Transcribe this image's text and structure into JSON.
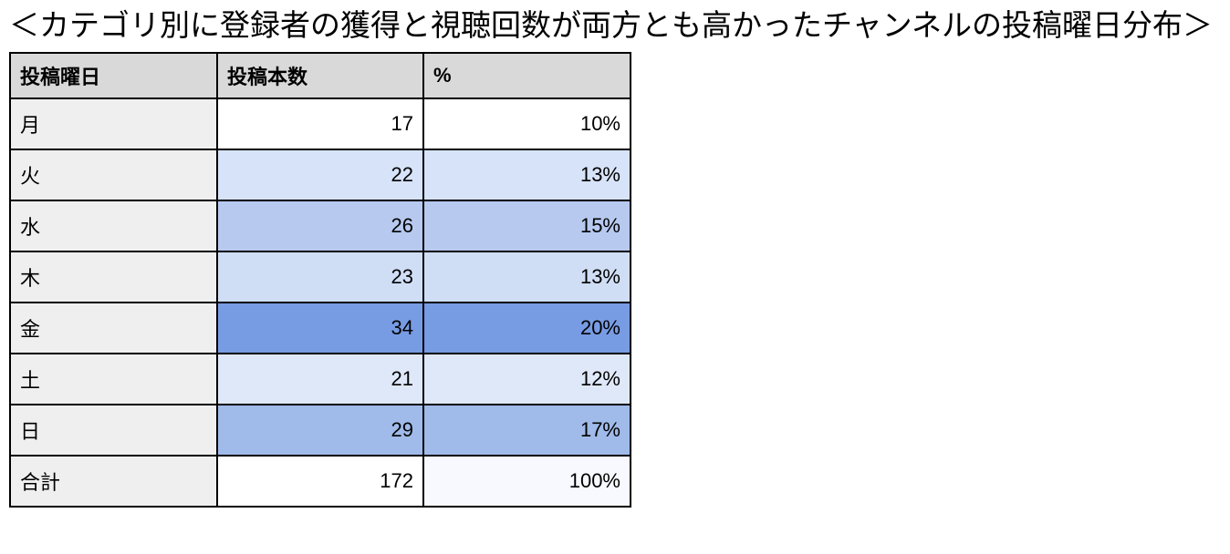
{
  "title": "＜カテゴリ別に登録者の獲得と視聴回数が両方とも高かったチャンネルの投稿曜日分布＞",
  "table": {
    "headers": [
      "投稿曜日",
      "投稿本数",
      "%"
    ],
    "colors": {
      "header_bg": "#d9d9d9",
      "day_col_bg": "#efefef",
      "border": "#000000",
      "scale_max": "#789ce3",
      "scale_min": "#ffffff"
    },
    "rows": [
      {
        "day": "月",
        "count": "17",
        "percent": "10%",
        "count_bg": "#ffffff",
        "percent_bg": "#ffffff"
      },
      {
        "day": "火",
        "count": "22",
        "percent": "13%",
        "count_bg": "#d7e3f8",
        "percent_bg": "#d7e3f8"
      },
      {
        "day": "水",
        "count": "26",
        "percent": "15%",
        "count_bg": "#b7c9ef",
        "percent_bg": "#b7c9ef"
      },
      {
        "day": "木",
        "count": "23",
        "percent": "13%",
        "count_bg": "#d0def5",
        "percent_bg": "#d0def5"
      },
      {
        "day": "金",
        "count": "34",
        "percent": "20%",
        "count_bg": "#789ce3",
        "percent_bg": "#789ce3"
      },
      {
        "day": "土",
        "count": "21",
        "percent": "12%",
        "count_bg": "#dfe8f9",
        "percent_bg": "#dfe8f9"
      },
      {
        "day": "日",
        "count": "29",
        "percent": "17%",
        "count_bg": "#a0bbe9",
        "percent_bg": "#a0bbe9"
      },
      {
        "day": "合計",
        "count": "172",
        "percent": "100%",
        "count_bg": "#ffffff",
        "percent_bg": "#f7f9fe"
      }
    ]
  },
  "chart_data": {
    "type": "table",
    "title": "＜カテゴリ別に登録者の獲得と視聴回数が両方とも高かったチャンネルの投稿曜日分布＞",
    "columns": [
      "投稿曜日",
      "投稿本数",
      "%"
    ],
    "categories": [
      "月",
      "火",
      "水",
      "木",
      "金",
      "土",
      "日"
    ],
    "values": [
      17,
      22,
      26,
      23,
      34,
      21,
      29
    ],
    "percents": [
      10,
      13,
      15,
      13,
      20,
      12,
      17
    ],
    "total": {
      "label": "合計",
      "value": 172,
      "percent": 100
    },
    "layout": "conditional color scale: white (min) to cornflower blue (max) on 投稿本数 and % columns"
  }
}
